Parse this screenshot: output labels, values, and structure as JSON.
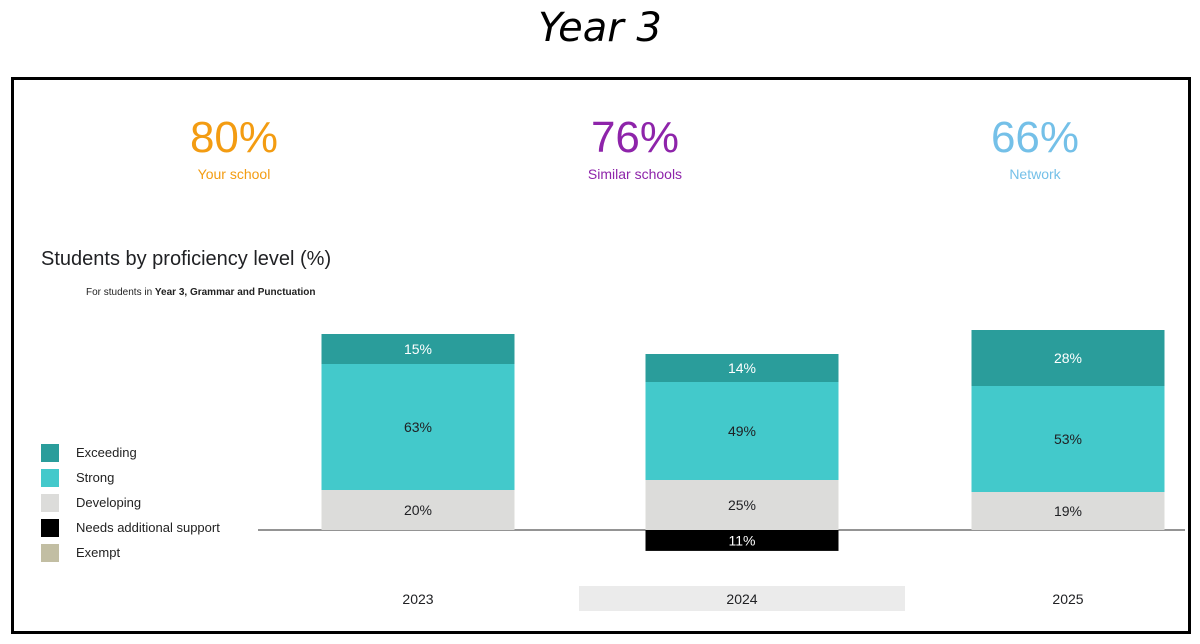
{
  "page": {
    "title": "Year 3"
  },
  "kpis": [
    {
      "value": "80%",
      "label": "Your school",
      "color": "#f39c12"
    },
    {
      "value": "76%",
      "label": "Similar schools",
      "color": "#8e24aa"
    },
    {
      "value": "66%",
      "label": "Network",
      "color": "#74c0e8"
    }
  ],
  "chart": {
    "title": "Students by proficiency level (%)",
    "subtitle_prefix": "For students in ",
    "subtitle_bold": "Year 3, Grammar and Punctuation"
  },
  "legend": [
    {
      "label": "Exceeding",
      "color": "#2a9d9b"
    },
    {
      "label": "Strong",
      "color": "#43c9cb"
    },
    {
      "label": "Developing",
      "color": "#dcdcda"
    },
    {
      "label": "Needs additional support",
      "color": "#000000"
    },
    {
      "label": "Exempt",
      "color": "#c2bea3"
    }
  ],
  "chart_data": {
    "type": "bar",
    "stacked": true,
    "title": "Students by proficiency level (%)",
    "categories": [
      "2023",
      "2024",
      "2025"
    ],
    "highlighted_category": "2024",
    "series": [
      {
        "name": "Exceeding",
        "values": [
          15,
          14,
          28
        ],
        "color": "#2a9d9b",
        "label_color": "#ffffff"
      },
      {
        "name": "Strong",
        "values": [
          63,
          49,
          53
        ],
        "color": "#43c9cb",
        "label_color": "#202124"
      },
      {
        "name": "Developing",
        "values": [
          20,
          25,
          19
        ],
        "color": "#dcdcda",
        "label_color": "#202124"
      },
      {
        "name": "Needs additional support",
        "values": [
          0,
          11,
          0
        ],
        "color": "#000000",
        "label_color": "#ffffff",
        "below_baseline": true
      },
      {
        "name": "Exempt",
        "values": [
          0,
          0,
          0
        ],
        "color": "#c2bea3",
        "label_color": "#202124"
      }
    ],
    "labels": [
      [
        "15%",
        "14%",
        "28%"
      ],
      [
        "63%",
        "49%",
        "53%"
      ],
      [
        "20%",
        "25%",
        "19%"
      ],
      [
        "",
        "11%",
        ""
      ],
      [
        "",
        "",
        ""
      ]
    ],
    "highlight_color": "#ebebeb",
    "baseline_color": "#555555",
    "legend_position": "left"
  }
}
